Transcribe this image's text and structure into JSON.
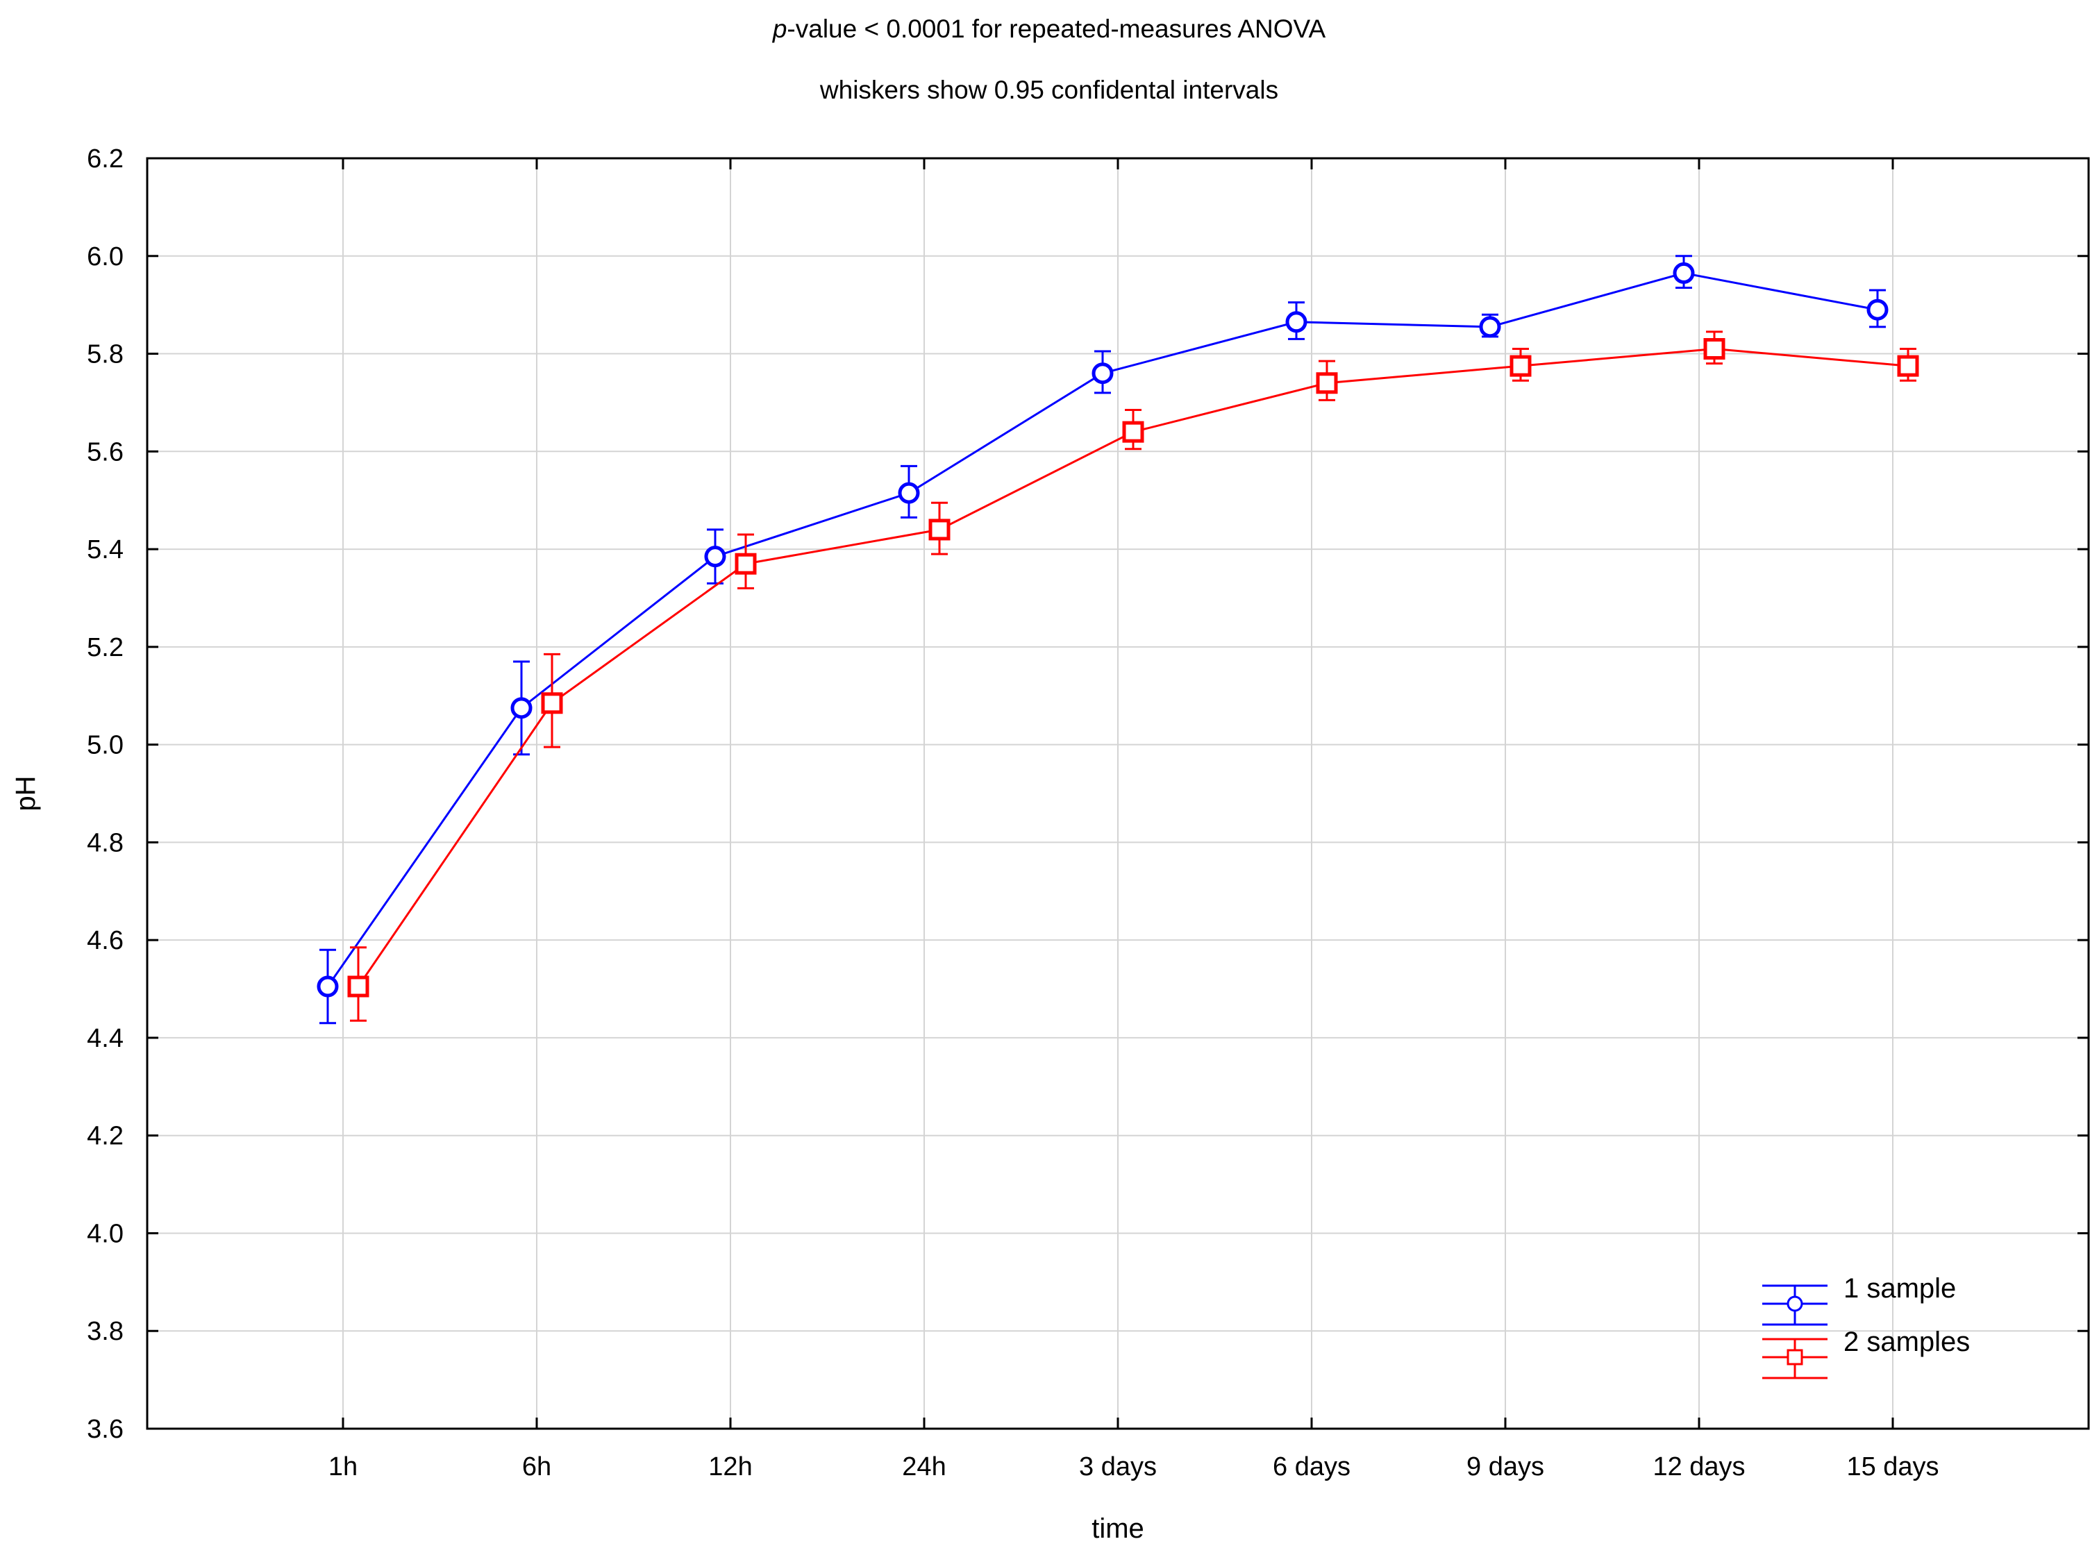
{
  "chart_data": {
    "type": "line",
    "title_italic": "p",
    "title_rest": "-value < 0.0001 for repeated-measures ANOVA",
    "subtitle": "whiskers show 0.95 confidental intervals",
    "xlabel": "time",
    "ylabel": "pH",
    "ylim": [
      3.6,
      6.2
    ],
    "yticks": [
      "3.6",
      "3.8",
      "4.0",
      "4.2",
      "4.4",
      "4.6",
      "4.8",
      "5.0",
      "5.2",
      "5.4",
      "5.6",
      "5.8",
      "6.0",
      "6.2"
    ],
    "categories": [
      "1h",
      "6h",
      "12h",
      "24h",
      "3 days",
      "6 days",
      "9 days",
      "12 days",
      "15 days"
    ],
    "grid": true,
    "legend_position": "bottom-right",
    "series": [
      {
        "name": "1 sample",
        "color": "#0000ff",
        "marker": "circle",
        "values": [
          4.505,
          5.075,
          5.385,
          5.515,
          5.76,
          5.865,
          5.855,
          5.965,
          5.89
        ],
        "ci_low": [
          4.43,
          4.98,
          5.33,
          5.465,
          5.72,
          5.83,
          5.835,
          5.935,
          5.855
        ],
        "ci_high": [
          4.58,
          5.17,
          5.44,
          5.57,
          5.805,
          5.905,
          5.88,
          6.0,
          5.93
        ]
      },
      {
        "name": "2 samples",
        "color": "#ff0000",
        "marker": "square",
        "values": [
          4.505,
          5.085,
          5.37,
          5.44,
          5.64,
          5.74,
          5.775,
          5.81,
          5.775
        ],
        "ci_low": [
          4.435,
          4.995,
          5.32,
          5.39,
          5.605,
          5.705,
          5.745,
          5.78,
          5.745
        ],
        "ci_high": [
          4.585,
          5.185,
          5.43,
          5.495,
          5.685,
          5.785,
          5.81,
          5.845,
          5.81
        ]
      }
    ]
  }
}
